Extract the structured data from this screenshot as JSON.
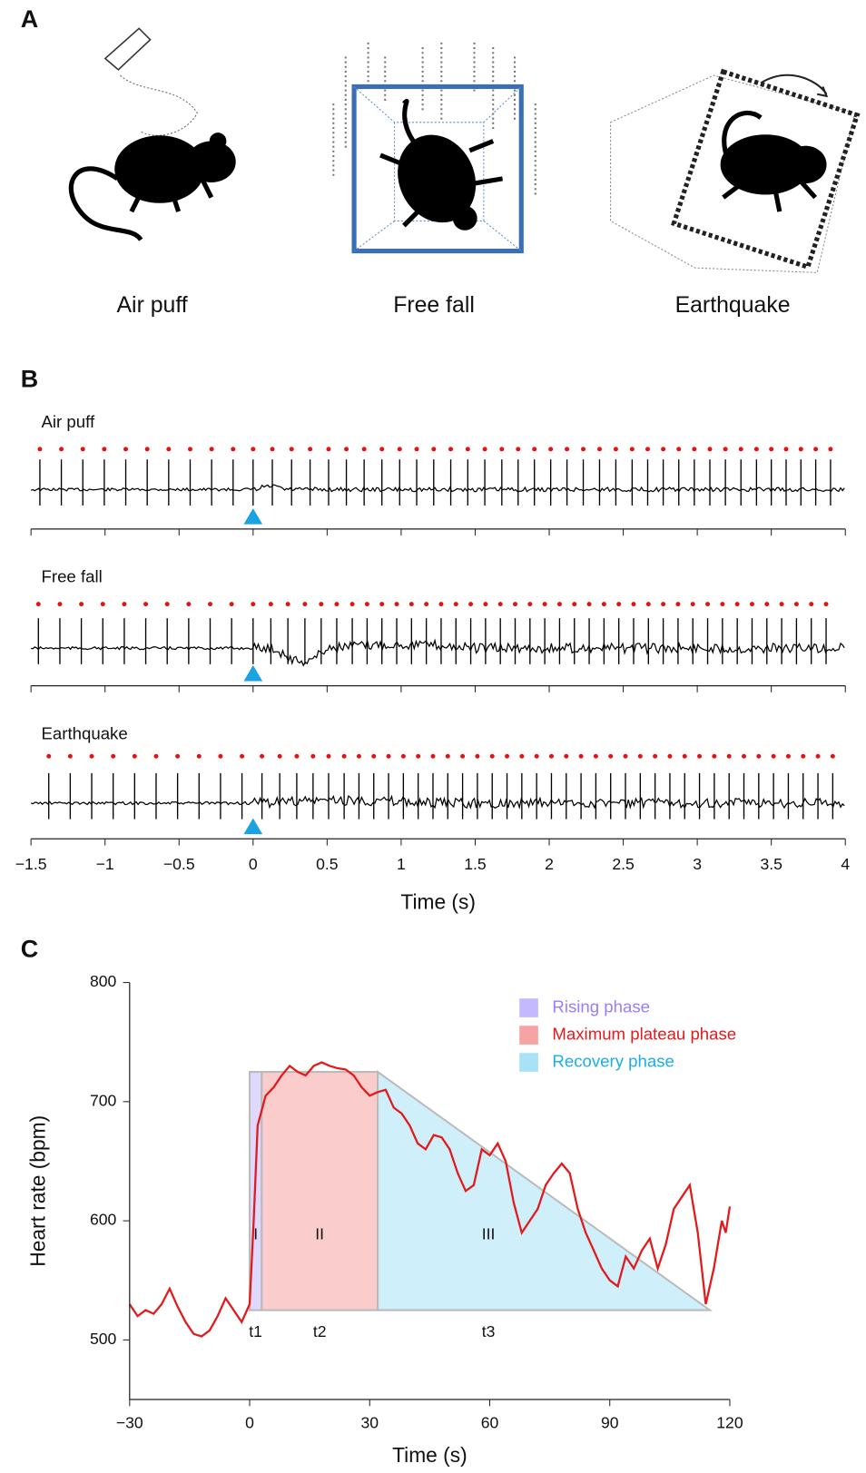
{
  "panel_labels": [
    "A",
    "B",
    "C"
  ],
  "illustrations": {
    "labels": [
      "Air puff",
      "Free fall",
      "Earthquake"
    ]
  },
  "chart_data": [
    {
      "type": "ecg",
      "xlim": [
        -1.5,
        4
      ],
      "xticks": [
        {
          "value": -1.5,
          "label": "−1.5"
        },
        {
          "value": -1,
          "label": "−1"
        },
        {
          "value": -0.5,
          "label": "−0.5"
        },
        0,
        0.5,
        1,
        1.5,
        2,
        2.5,
        3,
        3.5,
        4
      ],
      "xlabel": "Time (s)",
      "stimulus": 0,
      "stimulus_color": "#1aa3e0",
      "beat_color": "#e81010",
      "series": [
        {
          "name": "Air puff",
          "beats": [
            -1.44,
            -1.295,
            -1.15,
            -1.005,
            -0.86,
            -0.715,
            -0.57,
            -0.425,
            -0.28,
            -0.135,
            0.0,
            0.13,
            0.26,
            0.385,
            0.51,
            0.63,
            0.75,
            0.87,
            0.99,
            1.105,
            1.22,
            1.335,
            1.45,
            1.565,
            1.68,
            1.79,
            1.9,
            2.01,
            2.12,
            2.23,
            2.34,
            2.45,
            2.56,
            2.665,
            2.77,
            2.875,
            2.98,
            3.085,
            3.19,
            3.295,
            3.4,
            3.5,
            3.6,
            3.7,
            3.8,
            3.9
          ]
        },
        {
          "name": "Free fall",
          "beats": [
            -1.45,
            -1.305,
            -1.16,
            -1.015,
            -0.87,
            -0.725,
            -0.58,
            -0.435,
            -0.29,
            -0.145,
            0.0,
            0.12,
            0.235,
            0.35,
            0.46,
            0.565,
            0.67,
            0.77,
            0.87,
            0.97,
            1.07,
            1.17,
            1.27,
            1.37,
            1.47,
            1.57,
            1.67,
            1.77,
            1.87,
            1.97,
            2.07,
            2.17,
            2.27,
            2.37,
            2.47,
            2.57,
            2.67,
            2.77,
            2.87,
            2.97,
            3.07,
            3.17,
            3.27,
            3.37,
            3.47,
            3.57,
            3.67,
            3.77,
            3.87
          ]
        },
        {
          "name": "Earthquake",
          "beats": [
            -1.38,
            -1.235,
            -1.09,
            -0.945,
            -0.8,
            -0.655,
            -0.51,
            -0.365,
            -0.22,
            -0.075,
            0.06,
            0.18,
            0.295,
            0.405,
            0.51,
            0.615,
            0.715,
            0.815,
            0.915,
            1.015,
            1.115,
            1.215,
            1.315,
            1.415,
            1.515,
            1.615,
            1.715,
            1.815,
            1.915,
            2.015,
            2.115,
            2.215,
            2.315,
            2.415,
            2.515,
            2.615,
            2.715,
            2.815,
            2.915,
            3.015,
            3.115,
            3.215,
            3.315,
            3.415,
            3.515,
            3.615,
            3.715,
            3.815,
            3.915
          ]
        }
      ]
    },
    {
      "type": "line",
      "xlim": [
        -30,
        120
      ],
      "ylim": [
        450,
        800
      ],
      "xticks": [
        {
          "value": -30,
          "label": "−30"
        },
        0,
        30,
        60,
        90,
        120
      ],
      "yticks": [
        500,
        600,
        700,
        800
      ],
      "xlabel": "Time (s)",
      "ylabel": "Heart rate (bpm)",
      "color": "#e31a1c",
      "x": [
        -30,
        -28,
        -26,
        -24,
        -22,
        -20,
        -18,
        -16,
        -14,
        -12,
        -10,
        -8,
        -6,
        -4,
        -2,
        0,
        1,
        2,
        4,
        6,
        8,
        10,
        12,
        14,
        16,
        18,
        20,
        22,
        24,
        26,
        28,
        30,
        32,
        34,
        36,
        38,
        40,
        42,
        44,
        46,
        48,
        50,
        52,
        54,
        56,
        58,
        60,
        62,
        64,
        66,
        68,
        70,
        72,
        74,
        76,
        78,
        80,
        82,
        84,
        86,
        88,
        90,
        92,
        94,
        96,
        98,
        100,
        102,
        104,
        106,
        108,
        110,
        112,
        114,
        116,
        118,
        119,
        120
      ],
      "values": [
        530,
        520,
        525,
        522,
        530,
        543,
        528,
        515,
        505,
        503,
        508,
        520,
        535,
        525,
        515,
        530,
        600,
        680,
        705,
        712,
        722,
        730,
        725,
        722,
        730,
        733,
        730,
        728,
        727,
        722,
        712,
        705,
        708,
        710,
        695,
        690,
        680,
        665,
        660,
        672,
        670,
        660,
        640,
        625,
        630,
        660,
        655,
        665,
        650,
        615,
        590,
        600,
        610,
        630,
        640,
        648,
        640,
        610,
        590,
        575,
        560,
        550,
        545,
        570,
        560,
        575,
        585,
        560,
        580,
        610,
        620,
        630,
        590,
        530,
        560,
        600,
        590,
        612
      ],
      "phases": [
        {
          "name": "Rising phase",
          "label": "I",
          "time_label": "t1",
          "color": "#c4b8ff",
          "text_color": "#9b7bff",
          "x": [
            0,
            0,
            3,
            3
          ],
          "y": [
            525,
            725,
            725,
            525
          ]
        },
        {
          "name": "Maximum plateau phase",
          "label": "II",
          "time_label": "t2",
          "color": "#f5a3a3",
          "text_color": "#e31a1c",
          "x": [
            3,
            3,
            32,
            32
          ],
          "y": [
            525,
            725,
            725,
            525
          ]
        },
        {
          "name": "Recovery phase",
          "label": "III",
          "time_label": "t3",
          "color": "#a8e2f7",
          "text_color": "#1aaee8",
          "x": [
            32,
            32,
            115
          ],
          "y": [
            525,
            725,
            525
          ]
        }
      ]
    }
  ]
}
